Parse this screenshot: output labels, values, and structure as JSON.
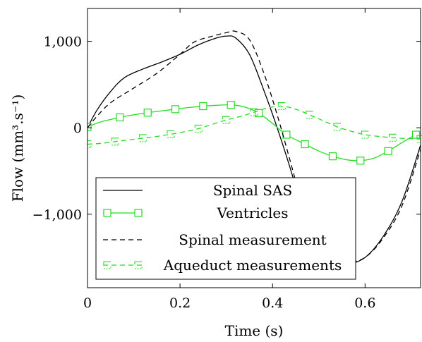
{
  "chart_data": {
    "type": "line",
    "xlabel": "Time (s)",
    "ylabel": "Flow (mm³.s⁻¹)",
    "xlim": [
      0,
      0.72
    ],
    "ylim": [
      -1850,
      1380
    ],
    "xticks": [
      0,
      0.2,
      0.4,
      0.6
    ],
    "xtick_labels": [
      "0",
      "0.2",
      "0.4",
      "0.6"
    ],
    "yticks": [
      -1000,
      0,
      1000
    ],
    "ytick_labels": [
      "−1,000",
      "0",
      "1,000"
    ],
    "grid": false,
    "legend_position": "bottom-left",
    "series": [
      {
        "name": "Spinal SAS",
        "style": "solid",
        "color": "#000000",
        "marker": "none",
        "x": [
          0,
          0.02,
          0.05,
          0.08,
          0.12,
          0.16,
          0.2,
          0.24,
          0.28,
          0.3,
          0.32,
          0.35,
          0.38,
          0.41,
          0.44,
          0.47,
          0.5,
          0.53,
          0.56,
          0.6,
          0.64,
          0.68,
          0.72
        ],
        "y": [
          0,
          200,
          420,
          580,
          680,
          760,
          850,
          960,
          1040,
          1060,
          1040,
          850,
          450,
          0,
          -500,
          -1050,
          -1420,
          -1560,
          -1580,
          -1500,
          -1250,
          -850,
          -200
        ]
      },
      {
        "name": "Ventricles",
        "style": "solid",
        "color": "#22dd22",
        "marker": "square",
        "x": [
          0,
          0.03,
          0.07,
          0.1,
          0.13,
          0.16,
          0.19,
          0.22,
          0.25,
          0.28,
          0.31,
          0.34,
          0.37,
          0.4,
          0.43,
          0.47,
          0.5,
          0.53,
          0.56,
          0.59,
          0.62,
          0.65,
          0.68,
          0.71,
          0.72
        ],
        "y": [
          10,
          70,
          120,
          150,
          175,
          195,
          215,
          235,
          250,
          260,
          265,
          240,
          170,
          50,
          -80,
          -190,
          -270,
          -330,
          -370,
          -380,
          -350,
          -270,
          -170,
          -80,
          -60
        ],
        "marker_indices": [
          0,
          2,
          4,
          6,
          8,
          10,
          12,
          14,
          15,
          17,
          19,
          21,
          23
        ]
      },
      {
        "name": "Spinal measurement",
        "style": "dashed",
        "color": "#000000",
        "marker": "none",
        "x": [
          0,
          0.02,
          0.05,
          0.1,
          0.15,
          0.2,
          0.23,
          0.27,
          0.3,
          0.32,
          0.35,
          0.38,
          0.41,
          0.44,
          0.47,
          0.5,
          0.53,
          0.56,
          0.6,
          0.64,
          0.68,
          0.72
        ],
        "y": [
          0,
          130,
          290,
          460,
          630,
          850,
          990,
          1060,
          1100,
          1115,
          1020,
          650,
          150,
          -420,
          -1000,
          -1420,
          -1540,
          -1560,
          -1500,
          -1270,
          -900,
          -250
        ]
      },
      {
        "name": "Aqueduct measurements",
        "style": "dashed",
        "color": "#22dd22",
        "marker": "half-square",
        "x": [
          0,
          0.03,
          0.06,
          0.09,
          0.12,
          0.15,
          0.18,
          0.21,
          0.24,
          0.27,
          0.3,
          0.33,
          0.36,
          0.39,
          0.42,
          0.45,
          0.48,
          0.51,
          0.54,
          0.57,
          0.6,
          0.63,
          0.66,
          0.69,
          0.72
        ],
        "y": [
          -190,
          -180,
          -160,
          -140,
          -120,
          -100,
          -75,
          -45,
          -10,
          40,
          90,
          130,
          180,
          230,
          250,
          215,
          150,
          80,
          10,
          -40,
          -80,
          -100,
          -115,
          -125,
          -130
        ],
        "marker_indices": [
          0,
          2,
          4,
          6,
          8,
          10,
          12,
          14,
          16,
          18,
          20,
          22,
          24
        ]
      }
    ]
  }
}
